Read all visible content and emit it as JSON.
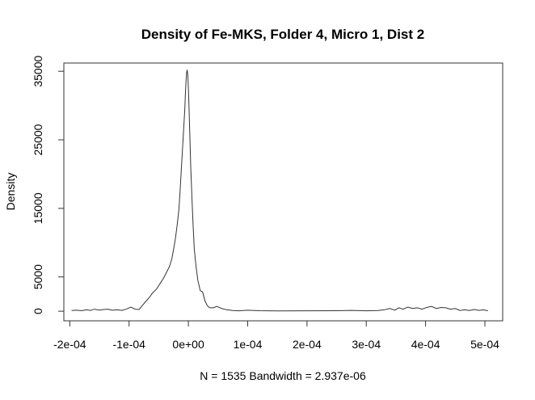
{
  "chart_data": {
    "type": "line",
    "title": "Density of Fe-MKS, Folder 4, Micro 1, Dist 2",
    "xlabel": "N = 1535   Bandwidth = 2.937e-06",
    "ylabel": "Density",
    "xlim": [
      -0.00021,
      0.00053
    ],
    "ylim": [
      -1400,
      36200
    ],
    "x_ticks": [
      -0.0002,
      -0.0001,
      0.0,
      0.0001,
      0.0002,
      0.0003,
      0.0004,
      0.0005
    ],
    "x_tick_labels": [
      "-2e-04",
      "-1e-04",
      "0e+00",
      "1e-04",
      "2e-04",
      "3e-04",
      "4e-04",
      "5e-04"
    ],
    "y_ticks": [
      0,
      5000,
      15000,
      25000,
      35000
    ],
    "y_tick_labels": [
      "0",
      "5000",
      "15000",
      "25000",
      "35000"
    ],
    "grid": false,
    "line_color": "#333333",
    "series": [
      {
        "x": [
          -0.000197,
          -0.000188,
          -0.00018,
          -0.000172,
          -0.000165,
          -0.000158,
          -0.00015,
          -0.000143,
          -0.000136,
          -0.000128,
          -0.00012,
          -0.000112,
          -0.000105,
          -9.7e-05,
          -9e-05,
          -8.3e-05,
          -7.8e-05,
          -7.2e-05,
          -6.6e-05,
          -6e-05,
          -5.4e-05,
          -4.8e-05,
          -4.2e-05,
          -3.6e-05,
          -3.2e-05,
          -2.8e-05,
          -2.5e-05,
          -2.2e-05,
          -1.9e-05,
          -1.6e-05,
          -1.4e-05,
          -1.2e-05,
          -1e-05,
          -8e-06,
          -6e-06,
          -5e-06,
          -4e-06,
          -3e-06,
          -2e-06,
          -1e-06,
          0.0,
          1e-06,
          2e-06,
          3e-06,
          4e-06,
          6e-06,
          8e-06,
          1e-05,
          1.3e-05,
          1.6e-05,
          2e-05,
          2.4e-05,
          2.8e-05,
          3.2e-05,
          3.6e-05,
          4.2e-05,
          4.8e-05,
          5.6e-05,
          6.5e-05,
          7.5e-05,
          8.5e-05,
          0.0001,
          0.00012,
          0.00015,
          0.0002,
          0.00025,
          0.000275,
          0.0003,
          0.00032,
          0.00033,
          0.00034,
          0.000348,
          0.000355,
          0.000362,
          0.00037,
          0.000378,
          0.000386,
          0.000394,
          0.000402,
          0.00041,
          0.000418,
          0.000426,
          0.000434,
          0.000442,
          0.00045,
          0.000458,
          0.000466,
          0.000474,
          0.000482,
          0.00049,
          0.000498,
          0.000505
        ],
        "y": [
          100,
          150,
          80,
          200,
          120,
          300,
          150,
          250,
          300,
          150,
          200,
          120,
          300,
          600,
          300,
          250,
          800,
          1400,
          2000,
          2700,
          3200,
          4000,
          4800,
          5800,
          6500,
          7600,
          9000,
          10500,
          12500,
          14800,
          17500,
          20500,
          23500,
          26500,
          29500,
          31800,
          33500,
          34800,
          35200,
          34500,
          32500,
          30000,
          27000,
          24000,
          21000,
          16500,
          12500,
          9000,
          6500,
          4500,
          3000,
          2800,
          1500,
          800,
          500,
          500,
          700,
          400,
          200,
          100,
          60,
          150,
          80,
          50,
          60,
          70,
          120,
          60,
          100,
          200,
          400,
          150,
          500,
          300,
          600,
          400,
          500,
          300,
          550,
          700,
          400,
          550,
          500,
          300,
          400,
          100,
          200,
          100,
          250,
          120,
          200,
          60
        ]
      }
    ]
  }
}
